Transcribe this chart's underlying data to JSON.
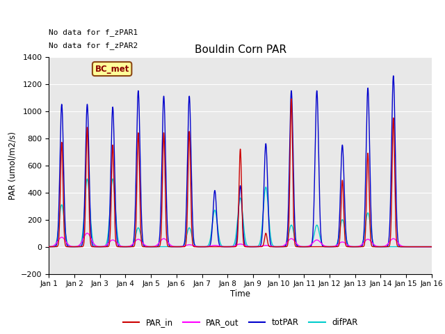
{
  "title": "Bouldin Corn PAR",
  "ylabel": "PAR (umol/m2/s)",
  "xlabel": "Time",
  "ylim": [
    -200,
    1400
  ],
  "xlim": [
    0,
    15
  ],
  "xtick_labels": [
    "Jan 1",
    "Jan 2",
    "Jan 3",
    "Jan 4",
    "Jan 5",
    "Jan 6",
    "Jan 7",
    "Jan 8",
    "Jan 9",
    "Jan 10",
    "Jan 11",
    "Jan 12",
    "Jan 13",
    "Jan 14",
    "Jan 15",
    "Jan 16"
  ],
  "xtick_positions": [
    0,
    1,
    2,
    3,
    4,
    5,
    6,
    7,
    8,
    9,
    10,
    11,
    12,
    13,
    14,
    15
  ],
  "color_PAR_in": "#cc0000",
  "color_PAR_out": "#ff00ff",
  "color_totPAR": "#0000cc",
  "color_difPAR": "#00cccc",
  "bg_color": "#e8e8e8",
  "fig_bg": "#ffffff",
  "annotation1": "No data for f_zPAR1",
  "annotation2": "No data for f_zPAR2",
  "legend_label": "BC_met",
  "legend_bg": "#ffff99",
  "legend_border": "#8b4513",
  "day_peaks_totPAR": [
    1050,
    1050,
    1030,
    1150,
    1110,
    1110,
    415,
    450,
    760,
    1150,
    1150,
    750,
    1170,
    1260,
    0
  ],
  "day_peaks_PAR_in": [
    770,
    880,
    750,
    840,
    840,
    850,
    0,
    720,
    100,
    1090,
    0,
    490,
    690,
    950,
    0
  ],
  "day_peaks_PAR_out": [
    70,
    100,
    50,
    55,
    60,
    15,
    10,
    20,
    10,
    60,
    50,
    35,
    55,
    60,
    0
  ],
  "day_peaks_difPAR": [
    310,
    500,
    500,
    140,
    0,
    140,
    270,
    360,
    440,
    160,
    160,
    200,
    250,
    0,
    0
  ],
  "peak_widths_tot": [
    0.07,
    0.07,
    0.07,
    0.07,
    0.07,
    0.07,
    0.07,
    0.07,
    0.07,
    0.07,
    0.07,
    0.07,
    0.07,
    0.07,
    0.07
  ],
  "peak_widths_in": [
    0.05,
    0.05,
    0.05,
    0.05,
    0.05,
    0.05,
    0.05,
    0.05,
    0.05,
    0.05,
    0.05,
    0.05,
    0.05,
    0.05,
    0.05
  ],
  "peak_widths_dif": [
    0.1,
    0.1,
    0.1,
    0.1,
    0.1,
    0.1,
    0.1,
    0.1,
    0.1,
    0.1,
    0.1,
    0.1,
    0.1,
    0.1,
    0.1
  ],
  "peak_widths_out": [
    0.15,
    0.15,
    0.15,
    0.15,
    0.15,
    0.15,
    0.15,
    0.15,
    0.15,
    0.15,
    0.15,
    0.15,
    0.15,
    0.15,
    0.15
  ]
}
